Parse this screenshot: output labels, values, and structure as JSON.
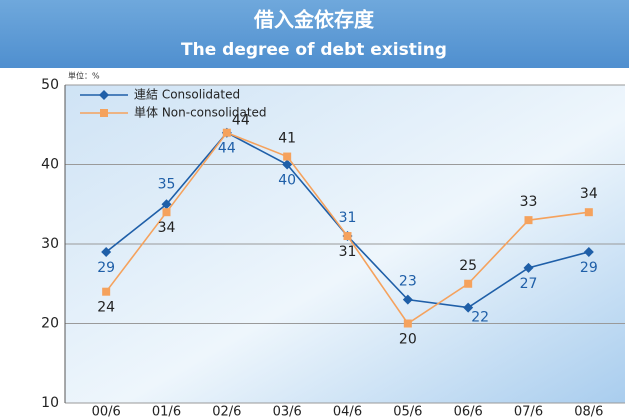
{
  "chart_data": {
    "type": "line",
    "title": "借入金依存度",
    "subtitle": "The degree of debt existing",
    "unit_label": "単位：%",
    "categories": [
      "00/6",
      "01/6",
      "02/6",
      "03/6",
      "04/6",
      "05/6",
      "06/6",
      "07/6",
      "08/6"
    ],
    "series": [
      {
        "name": "連結  Consolidated",
        "color": "#1f5fa8",
        "values": [
          29,
          35,
          44,
          40,
          31,
          23,
          22,
          27,
          29
        ]
      },
      {
        "name": "単体  Non-consolidated",
        "color": "#f5a25d",
        "values": [
          24,
          34,
          44,
          41,
          31,
          20,
          25,
          33,
          34
        ]
      }
    ],
    "ylim": [
      10,
      50
    ],
    "yticks": [
      10,
      20,
      30,
      40,
      50
    ],
    "grid": true,
    "legend": "upper left"
  }
}
